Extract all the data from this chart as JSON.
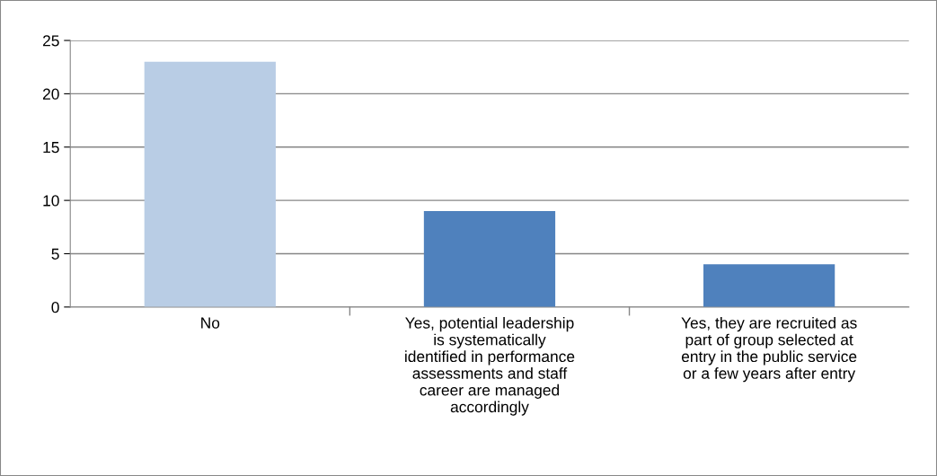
{
  "chart_data": {
    "type": "bar",
    "categories": [
      "No",
      "Yes, potential leadership is systematically identified in performance assessments and staff career are managed accordingly",
      "Yes, they are recruited as part of group selected at entry in the public service or a few years after entry"
    ],
    "values": [
      23,
      9,
      4
    ],
    "colors": [
      "#b9cde5",
      "#4f81bd",
      "#4f81bd"
    ],
    "ylim": [
      0,
      25
    ],
    "yticks": [
      0,
      5,
      10,
      15,
      20,
      25
    ],
    "grid": "y",
    "legend": false
  }
}
